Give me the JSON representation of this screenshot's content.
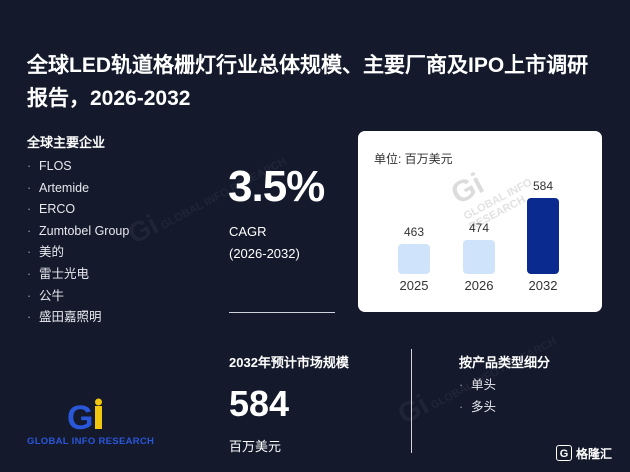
{
  "title": "全球LED轨道格栅灯行业总体规模、主要厂商及IPO上市调研报告，2026-2032",
  "companies": {
    "heading": "全球主要企业",
    "items": [
      "FLOS",
      "Artemide",
      "ERCO",
      "Zumtobel Group",
      "美的",
      "雷士光电",
      "公牛",
      "盛田嘉照明"
    ]
  },
  "cagr": {
    "value": "3.5%",
    "label": "CAGR",
    "range": "(2026-2032)"
  },
  "market_card": {
    "unit_label": "单位: 百万美元"
  },
  "chart_data": {
    "type": "bar",
    "categories": [
      "2025",
      "2026",
      "2032"
    ],
    "values": [
      463,
      474,
      584
    ],
    "unit": "单位: 百万美元",
    "bar_colors": [
      "#cfe4fb",
      "#cfe4fb",
      "#0b2a8f"
    ]
  },
  "market_size": {
    "heading": "2032年预计市场规模",
    "value": "584",
    "unit": "百万美元"
  },
  "product_types": {
    "heading": "按产品类型细分",
    "items": [
      "单头",
      "多头"
    ]
  },
  "logo": {
    "text": "GLOBAL INFO RESEARCH",
    "colors": {
      "blue": "#2a56d8",
      "yellow": "#f2c50f"
    }
  },
  "watermark": {
    "text": "GLOBAL INFO RESEARCH",
    "mark": "Gi"
  },
  "badge": {
    "icon": "gelonghui-icon",
    "text": "格隆汇"
  }
}
